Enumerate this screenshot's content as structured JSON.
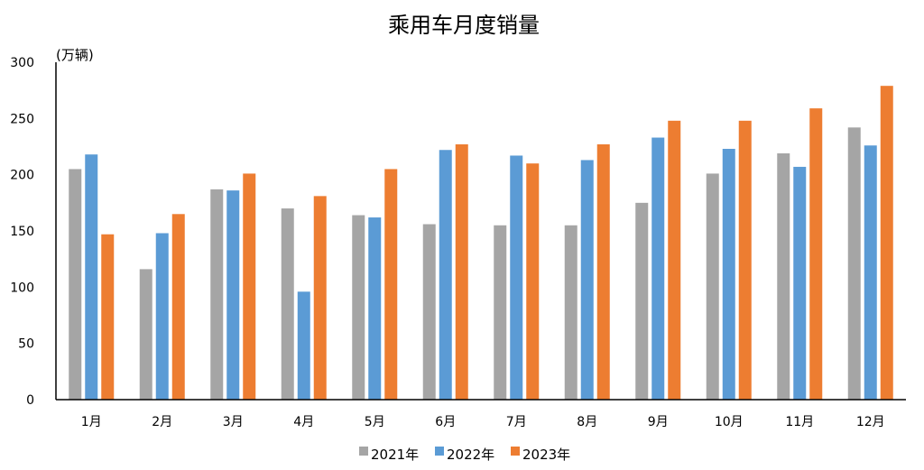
{
  "chart_data": {
    "type": "bar",
    "title": "乘用车月度销量",
    "unit_label": "(万辆)",
    "categories": [
      "1月",
      "2月",
      "3月",
      "4月",
      "5月",
      "6月",
      "7月",
      "8月",
      "9月",
      "10月",
      "11月",
      "12月"
    ],
    "series": [
      {
        "name": "2021年",
        "color": "#a5a5a5",
        "values": [
          205,
          116,
          187,
          170,
          164,
          156,
          155,
          155,
          175,
          201,
          219,
          242
        ]
      },
      {
        "name": "2022年",
        "color": "#5b9bd5",
        "values": [
          218,
          148,
          186,
          96,
          162,
          222,
          217,
          213,
          233,
          223,
          207,
          226
        ]
      },
      {
        "name": "2023年",
        "color": "#ed7d31",
        "values": [
          147,
          165,
          201,
          181,
          205,
          227,
          210,
          227,
          248,
          248,
          259,
          279
        ]
      }
    ],
    "ylim": [
      0,
      300
    ],
    "yticks": [
      0,
      50,
      100,
      150,
      200,
      250,
      300
    ],
    "grid": false,
    "legend_position": "bottom"
  }
}
